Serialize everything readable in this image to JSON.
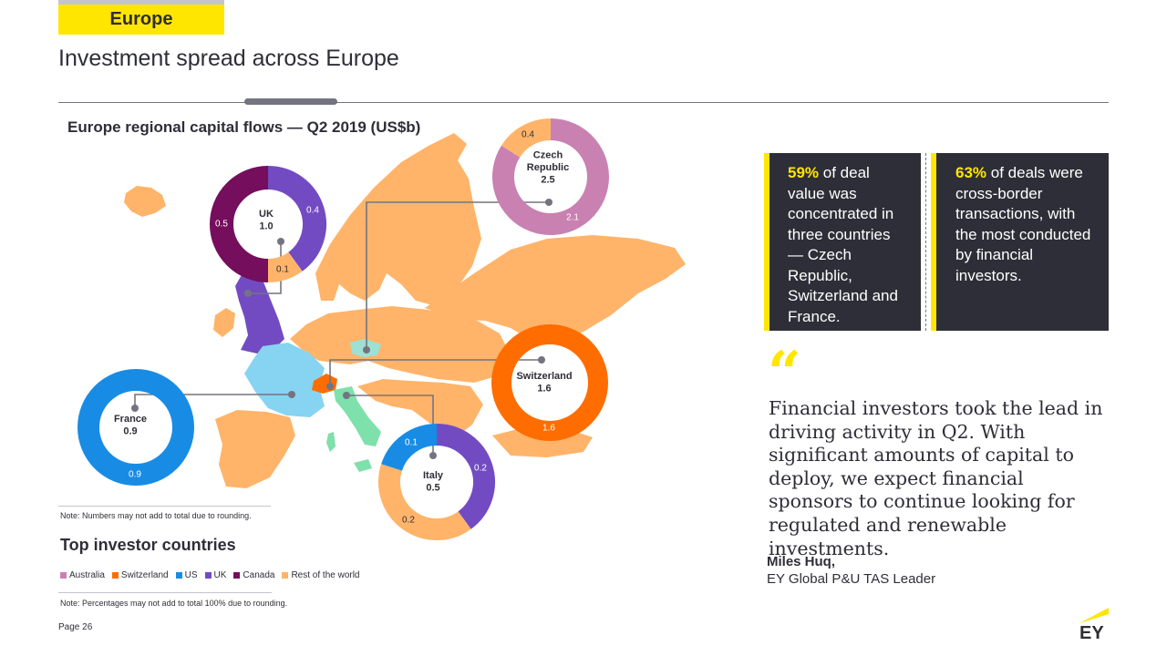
{
  "header": {
    "section_tag": "Europe",
    "page_title": "Investment spread across Europe"
  },
  "colors": {
    "ey_yellow": "#ffe600",
    "ey_dark": "#2e2e38",
    "rest_of_europe": "#ffb46a",
    "uk": "#724bc3",
    "switzerland": "#ff6d00",
    "czech": "#9de0d4",
    "italy": "#7ee0ab",
    "france": "#87d3f2",
    "australia": "#c981b2",
    "us": "#188ce5",
    "canada": "#750e5c"
  },
  "chart_data": {
    "type": "donut-map",
    "title": "Europe regional capital flows — Q2 2019 (US$b)",
    "note_map": "Note: Numbers may not add to total due to rounding.",
    "donuts": [
      {
        "country": "UK",
        "total": "1.0",
        "slices": [
          {
            "investor": "UK",
            "value": 0.4,
            "label": "0.4",
            "color": "#724bc3"
          },
          {
            "investor": "Rest of the world",
            "value": 0.1,
            "label": "0.1",
            "color": "#ffb46a"
          },
          {
            "investor": "Canada",
            "value": 0.5,
            "label": "0.5",
            "color": "#750e5c"
          }
        ]
      },
      {
        "country": "Czech Republic",
        "total": "2.5",
        "slices": [
          {
            "investor": "Australia",
            "value": 2.1,
            "label": "2.1",
            "color": "#c981b2"
          },
          {
            "investor": "Rest of the world",
            "value": 0.4,
            "label": "0.4",
            "color": "#ffb46a"
          }
        ]
      },
      {
        "country": "Switzerland",
        "total": "1.6",
        "slices": [
          {
            "investor": "Switzerland",
            "value": 1.6,
            "label": "1.6",
            "color": "#ff6d00"
          }
        ]
      },
      {
        "country": "France",
        "total": "0.9",
        "slices": [
          {
            "investor": "US",
            "value": 0.9,
            "label": "0.9",
            "color": "#188ce5"
          }
        ]
      },
      {
        "country": "Italy",
        "total": "0.5",
        "slices": [
          {
            "investor": "UK",
            "value": 0.2,
            "label": "0.2",
            "color": "#724bc3"
          },
          {
            "investor": "Rest of the world",
            "value": 0.2,
            "label": "0.2",
            "color": "#ffb46a"
          },
          {
            "investor": "US",
            "value": 0.1,
            "label": "0.1",
            "color": "#188ce5"
          }
        ]
      }
    ],
    "legend_title": "Top investor countries",
    "legend": [
      {
        "name": "Australia",
        "color": "#c981b2"
      },
      {
        "name": "Switzerland",
        "color": "#ff6d00"
      },
      {
        "name": "US",
        "color": "#188ce5"
      },
      {
        "name": "UK",
        "color": "#724bc3"
      },
      {
        "name": "Canada",
        "color": "#750e5c"
      },
      {
        "name": "Rest of the world",
        "color": "#ffb46a"
      }
    ],
    "note_legend": "Note: Percentages may not add to total 100% due to rounding."
  },
  "callouts": [
    {
      "pct": "59%",
      "text": " of deal value was concentrated in three countries — Czech Republic, Switzerland and France."
    },
    {
      "pct": "63%",
      "text": " of deals were cross-border transactions, with the most conducted by financial investors."
    }
  ],
  "quote": {
    "mark": "“",
    "text": "Financial investors took the lead in driving activity in Q2. With significant amounts of capital to deploy, we expect financial sponsors to continue looking for regulated and renewable investments.",
    "name": "Miles Huq,",
    "role": "EY Global P&U TAS Leader"
  },
  "footer": {
    "page": "Page 26",
    "logo_text": "EY"
  }
}
